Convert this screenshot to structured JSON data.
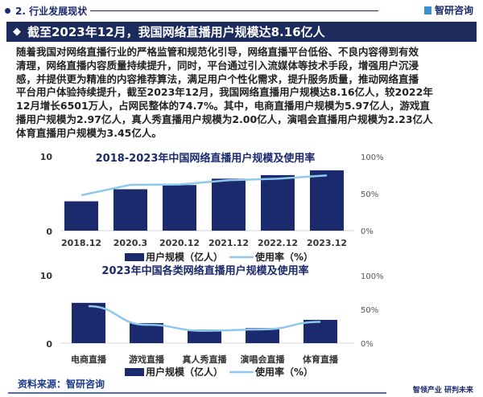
{
  "header": {
    "section": "2. 行业发展现状",
    "brand": "智研咨询"
  },
  "banner": {
    "title": "截至2023年12月，我国网络直播用户规模达8.16亿人"
  },
  "paragraph_lines": [
    "随着我国对网络直播行业的严格监管和规范化引导，网络直播平台低俗、不良内容得到有效",
    "清理，网络直播内容质量持续提升，同时，平台通过引入流媒体等技术手段，增强用户沉浸",
    "感，并提供更为精准的内容推荐算法，满足用户个性化需求，提升服务质量，推动网络直播",
    "平台用户体验持续提升，截至2023年12月，我国网络直播用户规模达8.16亿人，较2022年",
    "12月增长6501万人，占网民整体的74.7%。其中，电商直播用户规模为5.97亿人，游戏直",
    "播用户规模为2.97亿人，真人秀直播用户规模为2.00亿人，演唱会直播用户规模为2.23亿人",
    "体育直播用户规模为3.45亿人。"
  ],
  "chart_data": [
    {
      "type": "bar",
      "title": "2018-2023年中国网络直播用户规模及使用率",
      "categories": [
        "2018.12",
        "2020.3",
        "2020.12",
        "2021.12",
        "2022.12",
        "2023.12"
      ],
      "series": [
        {
          "name": "用户规模（亿人）",
          "type": "bar",
          "values": [
            3.97,
            5.6,
            6.17,
            7.03,
            7.51,
            8.16
          ]
        },
        {
          "name": "使用率（%）",
          "type": "line",
          "axis": "right",
          "values": [
            47.9,
            62.0,
            62.4,
            68.2,
            70.3,
            74.7
          ]
        }
      ],
      "yticks": [
        "0",
        "10"
      ],
      "y2ticks": [
        "0%",
        "50%",
        "100%"
      ],
      "ylim": [
        0,
        10
      ],
      "y2lim": [
        0,
        100
      ],
      "legend": "bottom"
    },
    {
      "type": "bar",
      "title": "2023年中国各类网络直播用户规模及使用率",
      "categories": [
        "电商直播",
        "游戏直播",
        "真人秀直播",
        "演唱会直播",
        "体育直播"
      ],
      "series": [
        {
          "name": "用户规模（亿人）",
          "type": "bar",
          "values": [
            5.97,
            2.97,
            2.0,
            2.23,
            3.45
          ]
        },
        {
          "name": "使用率（%）",
          "type": "line",
          "axis": "right",
          "values": [
            54.7,
            27.2,
            18.3,
            20.4,
            31.6
          ]
        }
      ],
      "yticks": [
        "0",
        "10"
      ],
      "y2ticks": [
        "0%",
        "50%",
        "100%"
      ],
      "ylim": [
        0,
        10
      ],
      "y2lim": [
        0,
        100
      ],
      "legend": "bottom"
    }
  ],
  "colors": {
    "bar": "#1a2a6c",
    "line": "#8ec8ec",
    "banner": "#1c2a5c"
  },
  "footer": {
    "source": "资料来源：智研咨询",
    "slogan": "智领产业 研判未来"
  }
}
